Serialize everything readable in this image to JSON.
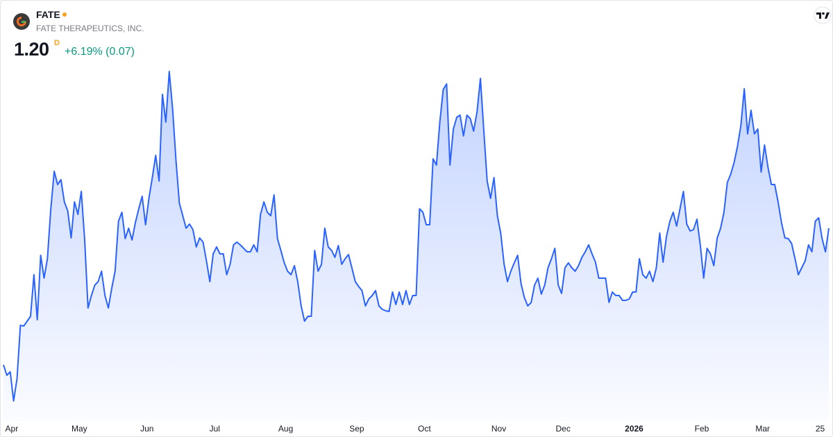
{
  "header": {
    "symbol": "FATE",
    "company": "FATE THERAPEUTICS, INC.",
    "price": "1.20",
    "resolution": "D",
    "change": "+6.19% (0.07)"
  },
  "chart_data": {
    "type": "area",
    "color": "#2962ff",
    "grid": false,
    "values": [
      0.806,
      0.776,
      0.786,
      0.702,
      0.766,
      0.92,
      0.918,
      0.932,
      0.946,
      1.066,
      0.936,
      1.122,
      1.056,
      1.112,
      1.256,
      1.364,
      1.326,
      1.34,
      1.276,
      1.25,
      1.172,
      1.276,
      1.24,
      1.306,
      1.166,
      0.97,
      1.006,
      1.036,
      1.046,
      1.076,
      1.006,
      0.97,
      1.026,
      1.076,
      1.22,
      1.246,
      1.17,
      1.2,
      1.166,
      1.216,
      1.256,
      1.292,
      1.21,
      1.286,
      1.346,
      1.41,
      1.336,
      1.586,
      1.506,
      1.652,
      1.546,
      1.396,
      1.272,
      1.236,
      1.2,
      1.212,
      1.196,
      1.146,
      1.172,
      1.16,
      1.106,
      1.046,
      1.126,
      1.146,
      1.126,
      1.126,
      1.066,
      1.096,
      1.152,
      1.16,
      1.152,
      1.142,
      1.132,
      1.132,
      1.152,
      1.132,
      1.24,
      1.276,
      1.246,
      1.236,
      1.296,
      1.17,
      1.136,
      1.1,
      1.076,
      1.066,
      1.092,
      1.046,
      0.976,
      0.932,
      0.946,
      0.946,
      1.136,
      1.076,
      1.096,
      1.2,
      1.146,
      1.136,
      1.116,
      1.15,
      1.096,
      1.112,
      1.124,
      1.086,
      1.046,
      1.032,
      1.02,
      0.976,
      0.996,
      1.006,
      1.02,
      0.976,
      0.966,
      0.962,
      0.96,
      1.016,
      0.98,
      1.016,
      0.98,
      1.02,
      0.98,
      1.006,
      1.006,
      1.256,
      1.246,
      1.21,
      1.21,
      1.4,
      1.382,
      1.506,
      1.6,
      1.616,
      1.382,
      1.486,
      1.52,
      1.526,
      1.466,
      1.526,
      1.516,
      1.48,
      1.536,
      1.632,
      1.48,
      1.336,
      1.286,
      1.346,
      1.236,
      1.186,
      1.096,
      1.046,
      1.076,
      1.1,
      1.122,
      1.04,
      1.0,
      0.976,
      0.986,
      1.036,
      1.056,
      1.01,
      1.036,
      1.086,
      1.112,
      1.142,
      1.036,
      1.012,
      1.086,
      1.1,
      1.086,
      1.076,
      1.092,
      1.116,
      1.132,
      1.152,
      1.126,
      1.102,
      1.056,
      1.056,
      1.056,
      0.986,
      1.016,
      1.006,
      1.006,
      0.992,
      0.992,
      0.996,
      1.016,
      1.016,
      1.112,
      1.066,
      1.056,
      1.076,
      1.046,
      1.086,
      1.186,
      1.102,
      1.176,
      1.22,
      1.246,
      1.206,
      1.256,
      1.306,
      1.212,
      1.192,
      1.196,
      1.226,
      1.152,
      1.056,
      1.142,
      1.126,
      1.092,
      1.172,
      1.2,
      1.246,
      1.332,
      1.356,
      1.39,
      1.436,
      1.496,
      1.602,
      1.472,
      1.54,
      1.472,
      1.486,
      1.362,
      1.44,
      1.376,
      1.326,
      1.326,
      1.276,
      1.216,
      1.172,
      1.17,
      1.156,
      1.112,
      1.066,
      1.086,
      1.106,
      1.152,
      1.132,
      1.22,
      1.23,
      1.17,
      1.132,
      1.2
    ],
    "xlim": [
      0,
      244
    ],
    "ylim": [
      0.656,
      1.676
    ],
    "xticks": [
      {
        "value": 1,
        "label": "Apr"
      },
      {
        "value": 21,
        "label": "May"
      },
      {
        "value": 41,
        "label": "Jun"
      },
      {
        "value": 61,
        "label": "Jul"
      },
      {
        "value": 82,
        "label": "Aug"
      },
      {
        "value": 103,
        "label": "Sep"
      },
      {
        "value": 123,
        "label": "Oct"
      },
      {
        "value": 145,
        "label": "Nov"
      },
      {
        "value": 164,
        "label": "Dec"
      },
      {
        "value": 185,
        "label": "2026"
      },
      {
        "value": 205,
        "label": "Feb"
      },
      {
        "value": 223,
        "label": "Mar"
      },
      {
        "value": 240,
        "label": "25"
      }
    ]
  }
}
